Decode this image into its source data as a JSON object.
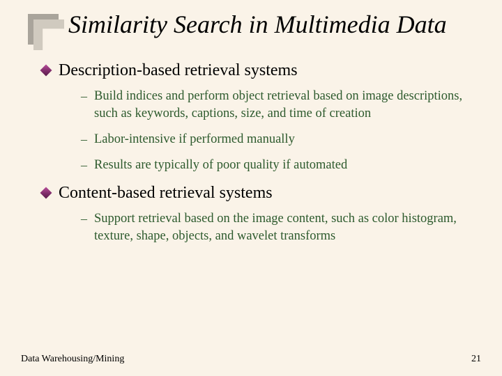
{
  "slide": {
    "title": "Similarity Search in Multimedia Data",
    "background_color": "#faf3e8",
    "title_fontsize": 36,
    "title_style": "italic",
    "bullets": [
      {
        "text": "Description-based retrieval systems",
        "sub": [
          "Build indices and perform object retrieval based on image descriptions, such as keywords, captions, size, and time of creation",
          "Labor-intensive if performed manually",
          "Results are typically of poor quality if automated"
        ]
      },
      {
        "text": "Content-based retrieval systems",
        "sub": [
          "Support retrieval based on the image content, such as color histogram, texture, shape, objects, and wavelet transforms"
        ]
      }
    ],
    "level1_fontsize": 24,
    "level2_fontsize": 18.5,
    "level2_color": "#2d5a2d",
    "bullet_icon_color_a": "#b84d9a",
    "bullet_icon_color_b": "#5a1d4b",
    "footer": "Data Warehousing/Mining",
    "page_number": "21"
  }
}
